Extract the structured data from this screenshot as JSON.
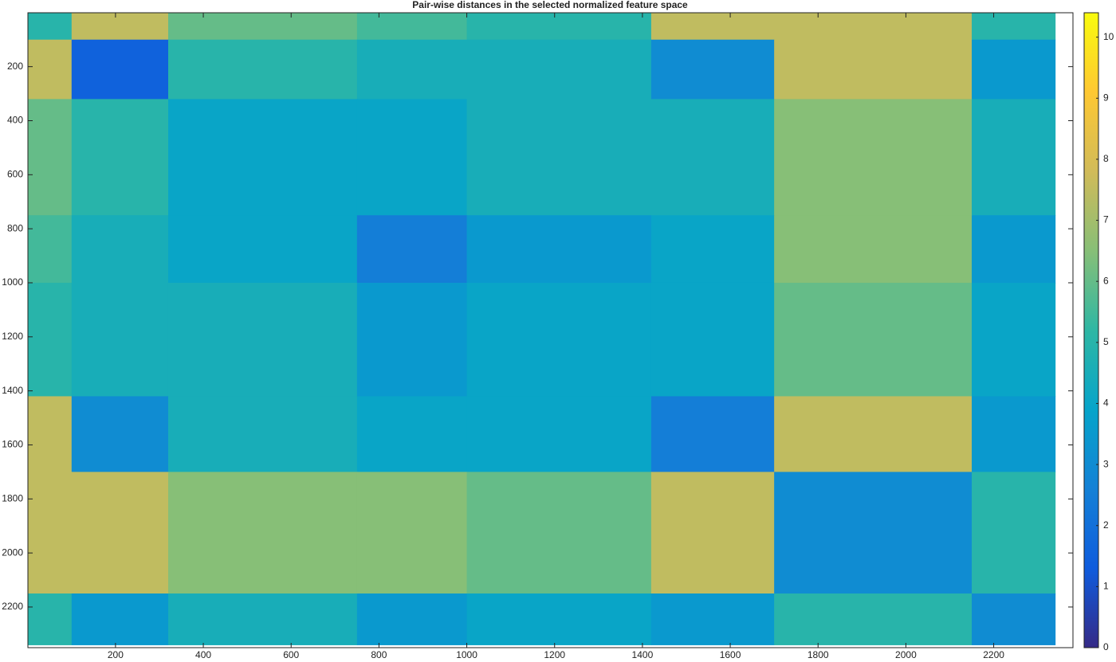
{
  "chart_data": {
    "type": "heatmap",
    "title": "Pair-wise distances in the selected normalized feature space",
    "edges": [
      1,
      100,
      320,
      750,
      1000,
      1420,
      1700,
      2150,
      2340
    ],
    "values": [
      [
        5,
        7.5,
        6,
        5.5,
        5,
        7.5,
        7.5,
        5
      ],
      [
        7.5,
        1.5,
        5,
        4.5,
        4.5,
        3,
        7.5,
        3.5
      ],
      [
        6,
        5,
        4,
        4,
        4.5,
        4.5,
        6.5,
        4.5
      ],
      [
        5.5,
        4.5,
        4,
        2.5,
        3.5,
        4,
        6.5,
        3.5
      ],
      [
        5,
        4.5,
        4.5,
        3.5,
        4,
        4,
        6,
        4
      ],
      [
        7.5,
        3,
        4.5,
        4,
        4,
        2.5,
        7.5,
        3.5
      ],
      [
        7.5,
        7.5,
        6.5,
        6.5,
        6,
        7.5,
        3,
        5
      ],
      [
        5,
        3.5,
        4.5,
        3.5,
        4,
        3.5,
        5,
        3
      ]
    ],
    "xlim": [
      0.5,
      2380.5
    ],
    "ylim": [
      0.5,
      2350.5
    ],
    "xticks": [
      200,
      400,
      600,
      800,
      1000,
      1200,
      1400,
      1600,
      1800,
      2000,
      2200
    ],
    "yticks": [
      200,
      400,
      600,
      800,
      1000,
      1200,
      1400,
      1600,
      1800,
      2000,
      2200
    ],
    "clim": [
      0,
      10.4
    ],
    "cticks": [
      0,
      1,
      2,
      3,
      4,
      5,
      6,
      7,
      8,
      9,
      10
    ],
    "colormap": [
      "#352a87",
      "#0f5cdd",
      "#1481d6",
      "#06a4ca",
      "#2eb7a4",
      "#87bf77",
      "#d1bb59",
      "#fec832",
      "#f9fb0e"
    ]
  }
}
